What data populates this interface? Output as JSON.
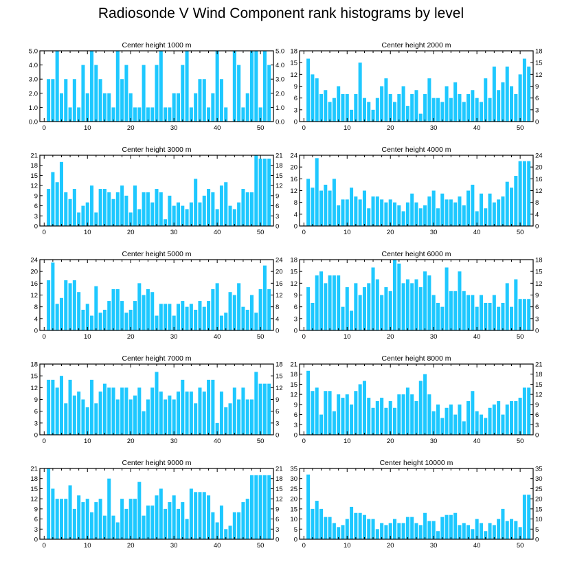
{
  "title": "Radiosonde V Wind Component rank histograms by level",
  "colors": {
    "bar": "#1ec8ff",
    "axis": "#000000",
    "background": "#ffffff"
  },
  "chart_data": [
    {
      "type": "bar",
      "title": "Center height 1000 m",
      "xlim": [
        -1,
        53
      ],
      "ylim": [
        0,
        5
      ],
      "xticks": [
        0,
        10,
        20,
        30,
        40,
        50
      ],
      "yticks": [
        0.0,
        1.0,
        2.0,
        3.0,
        4.0,
        5.0
      ],
      "ytick_labels": [
        "0.0",
        "1.0",
        "2.0",
        "3.0",
        "4.0",
        "5.0"
      ],
      "x": [
        1,
        2,
        3,
        4,
        5,
        6,
        7,
        8,
        9,
        10,
        11,
        12,
        13,
        14,
        15,
        16,
        17,
        18,
        19,
        20,
        21,
        22,
        23,
        24,
        25,
        26,
        27,
        28,
        29,
        30,
        31,
        32,
        33,
        34,
        35,
        36,
        37,
        38,
        39,
        40,
        41,
        42,
        43,
        44,
        45,
        46,
        47,
        48,
        49,
        50,
        51,
        52
      ],
      "values": [
        3,
        3,
        5,
        2,
        3,
        1,
        3,
        1,
        4,
        2,
        5,
        4,
        3,
        2,
        2,
        1,
        5,
        3,
        4,
        2,
        1,
        1,
        4,
        1,
        1,
        4,
        5,
        1,
        1,
        2,
        2,
        4,
        5,
        1,
        2,
        3,
        3,
        1,
        2,
        5,
        3,
        1,
        0,
        5,
        4,
        1,
        2,
        5,
        5,
        1,
        5,
        4
      ]
    },
    {
      "type": "bar",
      "title": "Center height 2000 m",
      "xlim": [
        -1,
        53
      ],
      "ylim": [
        0,
        18
      ],
      "xticks": [
        0,
        10,
        20,
        30,
        40,
        50
      ],
      "yticks": [
        0,
        3,
        6,
        9,
        12,
        15,
        18
      ],
      "ytick_labels": [
        "0",
        "3",
        "6",
        "9",
        "12",
        "15",
        "18"
      ],
      "x": [
        1,
        2,
        3,
        4,
        5,
        6,
        7,
        8,
        9,
        10,
        11,
        12,
        13,
        14,
        15,
        16,
        17,
        18,
        19,
        20,
        21,
        22,
        23,
        24,
        25,
        26,
        27,
        28,
        29,
        30,
        31,
        32,
        33,
        34,
        35,
        36,
        37,
        38,
        39,
        40,
        41,
        42,
        43,
        44,
        45,
        46,
        47,
        48,
        49,
        50,
        51,
        52
      ],
      "values": [
        16,
        12,
        11,
        7,
        8,
        5,
        6,
        9,
        7,
        7,
        3,
        7,
        15,
        6,
        5,
        3,
        6,
        9,
        11,
        7,
        5,
        7,
        9,
        4,
        7,
        8,
        2,
        7,
        11,
        6,
        6,
        5,
        9,
        6,
        10,
        7,
        5,
        7,
        8,
        6,
        5,
        11,
        6,
        14,
        8,
        10,
        14,
        9,
        7,
        12,
        16,
        14
      ]
    },
    {
      "type": "bar",
      "title": "Center height 3000 m",
      "xlim": [
        -1,
        53
      ],
      "ylim": [
        0,
        21
      ],
      "xticks": [
        0,
        10,
        20,
        30,
        40,
        50
      ],
      "yticks": [
        0,
        3,
        6,
        9,
        12,
        15,
        18,
        21
      ],
      "ytick_labels": [
        "0",
        "3",
        "6",
        "9",
        "12",
        "15",
        "18",
        "21"
      ],
      "x": [
        1,
        2,
        3,
        4,
        5,
        6,
        7,
        8,
        9,
        10,
        11,
        12,
        13,
        14,
        15,
        16,
        17,
        18,
        19,
        20,
        21,
        22,
        23,
        24,
        25,
        26,
        27,
        28,
        29,
        30,
        31,
        32,
        33,
        34,
        35,
        36,
        37,
        38,
        39,
        40,
        41,
        42,
        43,
        44,
        45,
        46,
        47,
        48,
        49,
        50,
        51,
        52
      ],
      "values": [
        11,
        16,
        13,
        19,
        10,
        8,
        11,
        4,
        6,
        7,
        12,
        4,
        11,
        11,
        10,
        8,
        10,
        12,
        9,
        4,
        12,
        5,
        10,
        10,
        7,
        11,
        10,
        2,
        9,
        6,
        7,
        6,
        5,
        7,
        14,
        7,
        9,
        11,
        10,
        5,
        12,
        13,
        6,
        5,
        7,
        11,
        10,
        10,
        21,
        20,
        20,
        20
      ]
    },
    {
      "type": "bar",
      "title": "Center height 4000 m",
      "xlim": [
        -1,
        53
      ],
      "ylim": [
        0,
        24
      ],
      "xticks": [
        0,
        10,
        20,
        30,
        40,
        50
      ],
      "yticks": [
        0,
        4,
        8,
        12,
        16,
        20,
        24
      ],
      "ytick_labels": [
        "0",
        "4",
        "8",
        "12",
        "16",
        "20",
        "24"
      ],
      "x": [
        1,
        2,
        3,
        4,
        5,
        6,
        7,
        8,
        9,
        10,
        11,
        12,
        13,
        14,
        15,
        16,
        17,
        18,
        19,
        20,
        21,
        22,
        23,
        24,
        25,
        26,
        27,
        28,
        29,
        30,
        31,
        32,
        33,
        34,
        35,
        36,
        37,
        38,
        39,
        40,
        41,
        42,
        43,
        44,
        45,
        46,
        47,
        48,
        49,
        50,
        51,
        52
      ],
      "values": [
        16,
        13,
        23,
        12,
        14,
        12,
        16,
        7,
        9,
        9,
        13,
        10,
        9,
        12,
        6,
        10,
        10,
        9,
        8,
        9,
        8,
        7,
        5,
        8,
        11,
        8,
        6,
        7,
        10,
        12,
        6,
        11,
        9,
        9,
        8,
        10,
        7,
        12,
        14,
        5,
        11,
        6,
        11,
        8,
        9,
        10,
        15,
        13,
        17,
        22,
        22,
        22
      ]
    },
    {
      "type": "bar",
      "title": "Center height 5000 m",
      "xlim": [
        -1,
        53
      ],
      "ylim": [
        0,
        24
      ],
      "xticks": [
        0,
        10,
        20,
        30,
        40,
        50
      ],
      "yticks": [
        0,
        4,
        8,
        12,
        16,
        20,
        24
      ],
      "ytick_labels": [
        "0",
        "4",
        "8",
        "12",
        "16",
        "20",
        "24"
      ],
      "x": [
        1,
        2,
        3,
        4,
        5,
        6,
        7,
        8,
        9,
        10,
        11,
        12,
        13,
        14,
        15,
        16,
        17,
        18,
        19,
        20,
        21,
        22,
        23,
        24,
        25,
        26,
        27,
        28,
        29,
        30,
        31,
        32,
        33,
        34,
        35,
        36,
        37,
        38,
        39,
        40,
        41,
        42,
        43,
        44,
        45,
        46,
        47,
        48,
        49,
        50,
        51,
        52
      ],
      "values": [
        17,
        23,
        9,
        11,
        17,
        16,
        17,
        13,
        7,
        9,
        5,
        15,
        6,
        7,
        10,
        14,
        14,
        10,
        6,
        7,
        10,
        16,
        12,
        14,
        13,
        5,
        9,
        9,
        9,
        5,
        9,
        10,
        8,
        9,
        7,
        10,
        8,
        10,
        14,
        16,
        5,
        6,
        13,
        12,
        16,
        8,
        7,
        12,
        6,
        14,
        22,
        14
      ]
    },
    {
      "type": "bar",
      "title": "Center height 6000 m",
      "xlim": [
        -1,
        53
      ],
      "ylim": [
        0,
        18
      ],
      "xticks": [
        0,
        10,
        20,
        30,
        40,
        50
      ],
      "yticks": [
        0,
        3,
        6,
        9,
        12,
        15,
        18
      ],
      "ytick_labels": [
        "0",
        "3",
        "6",
        "9",
        "12",
        "15",
        "18"
      ],
      "x": [
        1,
        2,
        3,
        4,
        5,
        6,
        7,
        8,
        9,
        10,
        11,
        12,
        13,
        14,
        15,
        16,
        17,
        18,
        19,
        20,
        21,
        22,
        23,
        24,
        25,
        26,
        27,
        28,
        29,
        30,
        31,
        32,
        33,
        34,
        35,
        36,
        37,
        38,
        39,
        40,
        41,
        42,
        43,
        44,
        45,
        46,
        47,
        48,
        49,
        50,
        51,
        52
      ],
      "values": [
        11,
        7,
        14,
        15,
        12,
        14,
        14,
        14,
        6,
        11,
        5,
        12,
        9,
        11,
        12,
        16,
        13,
        9,
        11,
        10,
        18,
        17,
        12,
        13,
        12,
        13,
        11,
        15,
        14,
        9,
        7,
        6,
        16,
        10,
        10,
        15,
        10,
        9,
        9,
        6,
        9,
        7,
        7,
        9,
        6,
        7,
        12,
        6,
        13,
        8,
        8,
        8
      ]
    },
    {
      "type": "bar",
      "title": "Center height 7000 m",
      "xlim": [
        -1,
        53
      ],
      "ylim": [
        0,
        18
      ],
      "xticks": [
        0,
        10,
        20,
        30,
        40,
        50
      ],
      "yticks": [
        0,
        3,
        6,
        9,
        12,
        15,
        18
      ],
      "ytick_labels": [
        "0",
        "3",
        "6",
        "9",
        "12",
        "15",
        "18"
      ],
      "x": [
        1,
        2,
        3,
        4,
        5,
        6,
        7,
        8,
        9,
        10,
        11,
        12,
        13,
        14,
        15,
        16,
        17,
        18,
        19,
        20,
        21,
        22,
        23,
        24,
        25,
        26,
        27,
        28,
        29,
        30,
        31,
        32,
        33,
        34,
        35,
        36,
        37,
        38,
        39,
        40,
        41,
        42,
        43,
        44,
        45,
        46,
        47,
        48,
        49,
        50,
        51,
        52
      ],
      "values": [
        14,
        14,
        12,
        15,
        8,
        14,
        10,
        11,
        9,
        7,
        14,
        8,
        11,
        13,
        12,
        12,
        9,
        12,
        12,
        9,
        10,
        12,
        6,
        9,
        12,
        16,
        11,
        9,
        10,
        9,
        11,
        14,
        11,
        11,
        8,
        12,
        11,
        14,
        14,
        3,
        11,
        7,
        8,
        12,
        9,
        12,
        9,
        9,
        16,
        13,
        13,
        13
      ]
    },
    {
      "type": "bar",
      "title": "Center height 8000 m",
      "xlim": [
        -1,
        53
      ],
      "ylim": [
        0,
        21
      ],
      "xticks": [
        0,
        10,
        20,
        30,
        40,
        50
      ],
      "yticks": [
        0,
        3,
        6,
        9,
        12,
        15,
        18,
        21
      ],
      "ytick_labels": [
        "0",
        "3",
        "6",
        "9",
        "12",
        "15",
        "18",
        "21"
      ],
      "x": [
        1,
        2,
        3,
        4,
        5,
        6,
        7,
        8,
        9,
        10,
        11,
        12,
        13,
        14,
        15,
        16,
        17,
        18,
        19,
        20,
        21,
        22,
        23,
        24,
        25,
        26,
        27,
        28,
        29,
        30,
        31,
        32,
        33,
        34,
        35,
        36,
        37,
        38,
        39,
        40,
        41,
        42,
        43,
        44,
        45,
        46,
        47,
        48,
        49,
        50,
        51,
        52
      ],
      "values": [
        19,
        13,
        14,
        6,
        13,
        13,
        7,
        12,
        11,
        12,
        9,
        13,
        15,
        16,
        11,
        8,
        10,
        11,
        8,
        10,
        8,
        12,
        12,
        14,
        12,
        10,
        16,
        18,
        12,
        7,
        9,
        5,
        8,
        9,
        6,
        9,
        4,
        10,
        13,
        7,
        6,
        5,
        8,
        9,
        10,
        6,
        9,
        10,
        10,
        11,
        14,
        14
      ]
    },
    {
      "type": "bar",
      "title": "Center height 9000 m",
      "xlim": [
        -1,
        53
      ],
      "ylim": [
        0,
        21
      ],
      "xticks": [
        0,
        10,
        20,
        30,
        40,
        50
      ],
      "yticks": [
        0,
        3,
        6,
        9,
        12,
        15,
        18,
        21
      ],
      "ytick_labels": [
        "0",
        "3",
        "6",
        "9",
        "12",
        "15",
        "18",
        "21"
      ],
      "x": [
        1,
        2,
        3,
        4,
        5,
        6,
        7,
        8,
        9,
        10,
        11,
        12,
        13,
        14,
        15,
        16,
        17,
        18,
        19,
        20,
        21,
        22,
        23,
        24,
        25,
        26,
        27,
        28,
        29,
        30,
        31,
        32,
        33,
        34,
        35,
        36,
        37,
        38,
        39,
        40,
        41,
        42,
        43,
        44,
        45,
        46,
        47,
        48,
        49,
        50,
        51,
        52
      ],
      "values": [
        21,
        15,
        12,
        12,
        12,
        16,
        9,
        13,
        11,
        12,
        8,
        11,
        12,
        7,
        18,
        7,
        5,
        12,
        9,
        12,
        12,
        17,
        7,
        10,
        10,
        13,
        15,
        9,
        11,
        13,
        9,
        11,
        6,
        15,
        14,
        14,
        14,
        13,
        8,
        5,
        10,
        3,
        4,
        8,
        8,
        11,
        12,
        19,
        19,
        19,
        19,
        19
      ]
    },
    {
      "type": "bar",
      "title": "Center height 10000 m",
      "xlim": [
        -1,
        53
      ],
      "ylim": [
        0,
        35
      ],
      "xticks": [
        0,
        10,
        20,
        30,
        40,
        50
      ],
      "yticks": [
        0,
        5,
        10,
        15,
        20,
        25,
        30,
        35
      ],
      "ytick_labels": [
        "0",
        "5",
        "10",
        "15",
        "20",
        "25",
        "30",
        "35"
      ],
      "x": [
        1,
        2,
        3,
        4,
        5,
        6,
        7,
        8,
        9,
        10,
        11,
        12,
        13,
        14,
        15,
        16,
        17,
        18,
        19,
        20,
        21,
        22,
        23,
        24,
        25,
        26,
        27,
        28,
        29,
        30,
        31,
        32,
        33,
        34,
        35,
        36,
        37,
        38,
        39,
        40,
        41,
        42,
        43,
        44,
        45,
        46,
        47,
        48,
        49,
        50,
        51,
        52
      ],
      "values": [
        32,
        15,
        19,
        15,
        11,
        11,
        8,
        6,
        7,
        10,
        16,
        13,
        13,
        12,
        10,
        10,
        5,
        8,
        7,
        8,
        10,
        8,
        8,
        11,
        11,
        8,
        7,
        13,
        9,
        9,
        4,
        11,
        12,
        12,
        13,
        7,
        8,
        7,
        5,
        10,
        8,
        4,
        8,
        7,
        10,
        15,
        9,
        10,
        9,
        6,
        22,
        22
      ]
    }
  ]
}
